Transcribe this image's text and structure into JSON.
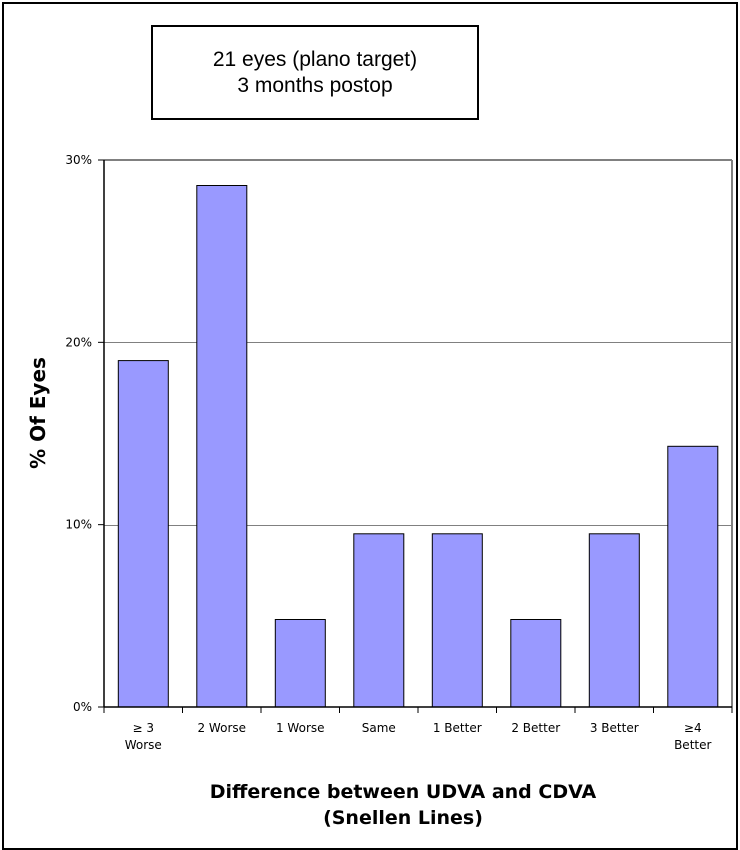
{
  "title_lines": [
    "21 eyes (plano target)",
    "3 months postop"
  ],
  "chart_data": {
    "type": "bar",
    "title": "21 eyes (plano target) 3 months postop",
    "categories": [
      "≥ 3 Worse",
      "2 Worse",
      "1 Worse",
      "Same",
      "1 Better",
      "2 Better",
      "3 Better",
      "≥4 Better"
    ],
    "category_lines": [
      [
        "≥ 3",
        "Worse"
      ],
      [
        "2 Worse"
      ],
      [
        "1 Worse"
      ],
      [
        "Same"
      ],
      [
        "1 Better"
      ],
      [
        "2 Better"
      ],
      [
        "3 Better"
      ],
      [
        "≥4",
        "Better"
      ]
    ],
    "values": [
      19.0,
      28.6,
      4.8,
      9.5,
      9.5,
      4.8,
      9.5,
      14.3
    ],
    "ylim": [
      0,
      30
    ],
    "yticks": [
      0,
      10,
      20,
      30
    ],
    "ytick_labels": [
      "0%",
      "10%",
      "20%",
      "30%"
    ],
    "ylabel": "% Of Eyes",
    "xlabel_lines": [
      "Difference between  UDVA and CDVA",
      "(Snellen Lines)"
    ],
    "grid": true,
    "bar_color": "#9999ff",
    "bar_edge_color": "#000000",
    "grid_color": "#808080",
    "frame_color": "#808080"
  }
}
